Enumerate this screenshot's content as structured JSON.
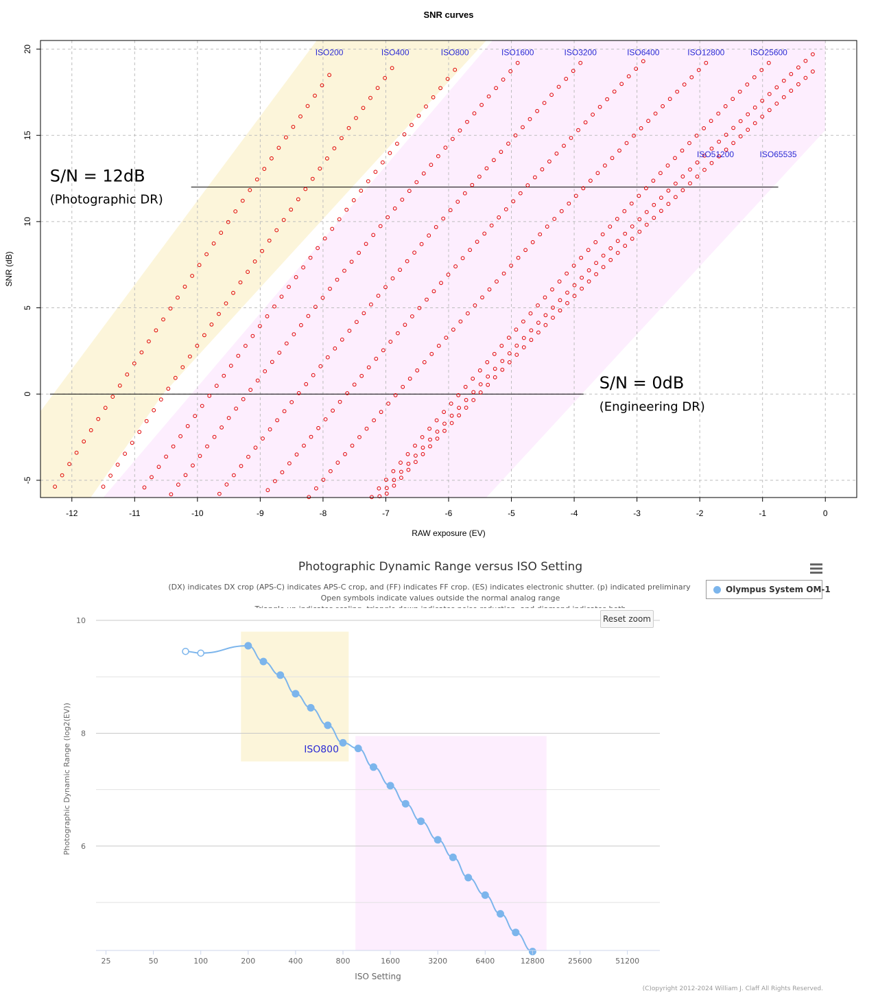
{
  "chart_data": [
    {
      "type": "scatter",
      "title": "SNR curves",
      "xlabel": "RAW exposure (EV)",
      "ylabel": "SNR (dB)",
      "xlim": [
        -12.5,
        0.5
      ],
      "ylim": [
        -6,
        20.5
      ],
      "x_ticks": [
        "-12",
        "-11",
        "-10",
        "-9",
        "-8",
        "-7",
        "-6",
        "-5",
        "-4",
        "-3",
        "-2",
        "-1",
        "0"
      ],
      "y_ticks": [
        "-5",
        "0",
        "5",
        "10",
        "15",
        "20"
      ],
      "grid": true,
      "series": [
        {
          "name": "ISO200",
          "top_ev": -7.9,
          "snr_max": 18.5,
          "slope_db_per_ev": 5.2
        },
        {
          "name": "ISO400",
          "top_ev": -6.9,
          "snr_max": 18.9,
          "slope_db_per_ev": 5.0
        },
        {
          "name": "ISO800",
          "top_ev": -5.9,
          "snr_max": 18.8,
          "slope_db_per_ev": 4.6
        },
        {
          "name": "ISO1600",
          "top_ev": -4.9,
          "snr_max": 19.2,
          "slope_db_per_ev": 4.2
        },
        {
          "name": "ISO3200",
          "top_ev": -3.9,
          "snr_max": 19.2,
          "slope_db_per_ev": 4.0
        },
        {
          "name": "ISO6400",
          "top_ev": -2.9,
          "snr_max": 19.3,
          "slope_db_per_ev": 3.8
        },
        {
          "name": "ISO12800",
          "top_ev": -1.9,
          "snr_max": 19.2,
          "slope_db_per_ev": 3.6
        },
        {
          "name": "ISO25600",
          "top_ev": -0.9,
          "snr_max": 19.2,
          "slope_db_per_ev": 3.6
        },
        {
          "name": "ISO51200",
          "top_ev": -0.2,
          "snr_max": 19.7,
          "slope_db_per_ev": 3.3
        },
        {
          "name": "ISO65535",
          "top_ev": -0.2,
          "snr_max": 18.7,
          "slope_db_per_ev": 3.2
        }
      ],
      "series_label_positions": [
        {
          "name": "ISO200",
          "ev": -7.9,
          "snr": 19.8
        },
        {
          "name": "ISO400",
          "ev": -6.85,
          "snr": 19.8
        },
        {
          "name": "ISO800",
          "ev": -5.9,
          "snr": 19.8
        },
        {
          "name": "ISO1600",
          "ev": -4.9,
          "snr": 19.8
        },
        {
          "name": "ISO3200",
          "ev": -3.9,
          "snr": 19.8
        },
        {
          "name": "ISO6400",
          "ev": -2.9,
          "snr": 19.8
        },
        {
          "name": "ISO12800",
          "ev": -1.9,
          "snr": 19.8
        },
        {
          "name": "ISO25600",
          "ev": -0.9,
          "snr": 19.8
        },
        {
          "name": "ISO51200",
          "ev": -1.75,
          "snr": 13.9
        },
        {
          "name": "ISO65535",
          "ev": -0.75,
          "snr": 13.9
        }
      ],
      "reference_lines": [
        {
          "snr": 12,
          "ev_from": -10.1,
          "ev_to": -0.75
        },
        {
          "snr": 0,
          "ev_from": -12.35,
          "ev_to": -3.85
        }
      ],
      "annotations": [
        {
          "text": "S/N = 12dB",
          "ev": -12.35,
          "snr": 12.4
        },
        {
          "text": "(Photographic DR)",
          "ev": -12.35,
          "snr": 11.2
        },
        {
          "text": "S/N = 0dB",
          "ev": -3.6,
          "snr": 0.4
        },
        {
          "text": "(Engineering DR)",
          "ev": -3.6,
          "snr": -0.8
        }
      ],
      "highlight_bands": [
        {
          "name": "low-iso-band",
          "polygon_ev_snr": [
            [
              -12.5,
              -1.0
            ],
            [
              -8.1,
              20.5
            ],
            [
              -5.4,
              20.5
            ],
            [
              -10.55,
              0.0
            ],
            [
              -11.7,
              -6.0
            ],
            [
              -12.5,
              -6.0
            ]
          ]
        },
        {
          "name": "high-iso-band",
          "polygon_ev_snr": [
            [
              -5.3,
              20.5
            ],
            [
              0.0,
              20.5
            ],
            [
              0.0,
              15.3
            ],
            [
              -5.4,
              -6.0
            ],
            [
              -11.5,
              -6.0
            ]
          ]
        }
      ]
    },
    {
      "type": "line",
      "title": "Photographic Dynamic Range versus ISO Setting",
      "subtitle_lines": [
        "(DX) indicates DX crop (APS-C) indicates APS-C crop, and (FF) indicates FF crop. (ES) indicates electronic shutter. (p) indicated preliminary",
        "Open symbols indicate values outside the normal analog range",
        "Triangle up indicates scaling, triangle down indicates noise reduction, and diamond indicates both"
      ],
      "xlabel": "ISO Setting",
      "ylabel": "Photographic Dynamic Range (log2(EV))",
      "x_scale": "log2",
      "x_ticks": [
        "25",
        "50",
        "100",
        "200",
        "400",
        "800",
        "1600",
        "3200",
        "6400",
        "12800",
        "25600",
        "51200"
      ],
      "y_ticks": [
        "6",
        "8",
        "10"
      ],
      "ylim": [
        4.15,
        10.0
      ],
      "legend": "top-right",
      "series": [
        {
          "name": "Olympus System OM-1",
          "color": "#7cb5ec",
          "x": [
            80,
            100,
            200,
            250,
            320,
            400,
            500,
            640,
            800,
            1000,
            1250,
            1600,
            2000,
            2500,
            3200,
            4000,
            5000,
            6400,
            8000,
            10000,
            12800
          ],
          "y": [
            9.45,
            9.42,
            9.55,
            9.27,
            9.03,
            8.7,
            8.45,
            8.14,
            7.83,
            7.73,
            7.4,
            7.07,
            6.75,
            6.44,
            6.11,
            5.8,
            5.44,
            5.13,
            4.8,
            4.47,
            4.13
          ],
          "open_symbol": [
            true,
            true,
            false,
            false,
            false,
            false,
            false,
            false,
            false,
            false,
            false,
            false,
            false,
            false,
            false,
            false,
            false,
            false,
            false,
            false,
            false
          ]
        }
      ],
      "annotations": [
        {
          "text": "ISO800",
          "iso": 800
        }
      ],
      "highlight_bands": [
        {
          "name": "low-iso-band",
          "iso_from": 180,
          "iso_to": 870,
          "dr_from": 7.5,
          "dr_to": 9.8
        },
        {
          "name": "high-iso-band",
          "iso_from": 960,
          "iso_to": 15700,
          "dr_from": 4.15,
          "dr_to": 7.95
        }
      ],
      "reset_zoom_label": "Reset zoom",
      "copyright": "(C)opyright 2012-2024 William J. Claff All Rights Reserved."
    }
  ],
  "colors": {
    "low_band": "#fcf5da",
    "high_band": "#fdeefe",
    "point_red": "#e00000",
    "iso_label_blue": "#2a2ad4",
    "line_blue": "#7cb5ec"
  }
}
